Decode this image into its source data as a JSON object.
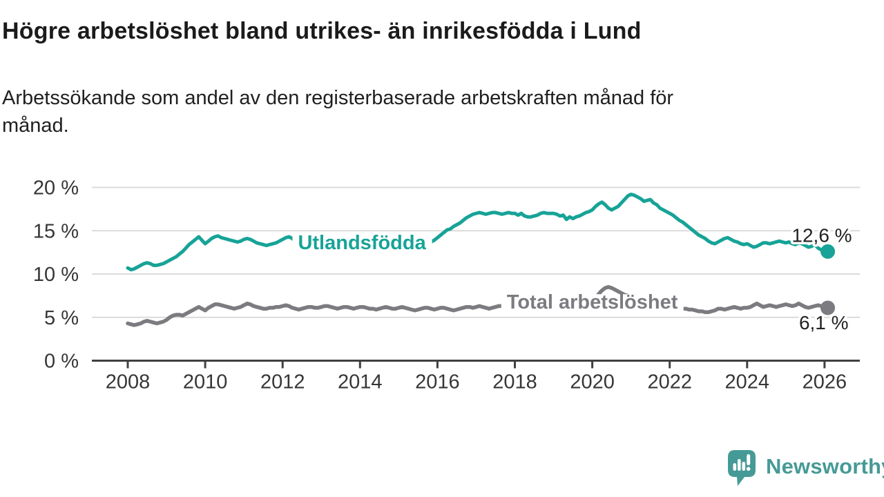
{
  "header": {
    "title": "Högre arbetslöshet bland utrikes- än inrikesfödda i Lund",
    "subtitle_lines": [
      "Arbetssökande som andel av den registerbaserade arbetskraften månad för",
      "månad."
    ]
  },
  "chart_data": {
    "type": "line",
    "title": "Högre arbetslöshet bland utrikes- än inrikesfödda i Lund",
    "subtitle": "Arbetssökande som andel av den registerbaserade arbetskraften månad för månad.",
    "unit": "%",
    "grid": "horizontal",
    "legend_position": "inline-labels",
    "x_axis": {
      "frequency": "monthly",
      "start_year": 2008,
      "start_month": 1,
      "end_year": 2026,
      "end_month": 2,
      "ticks": [
        2008,
        2010,
        2012,
        2014,
        2016,
        2018,
        2020,
        2022,
        2024,
        2026
      ],
      "axis_color": "#404040",
      "tick_label_color": "#363636"
    },
    "y_axis": {
      "min": 0,
      "max": 21,
      "ticks": [
        0,
        5,
        10,
        15,
        20
      ],
      "tick_suffix": " %",
      "gridline_color": "#dbdbdb",
      "tick_label_color": "#363636"
    },
    "end_label_color": "#222222",
    "series": [
      {
        "name": "Utlandsfödda",
        "color": "#17a397",
        "label_anchor": {
          "year": 2014.05,
          "value": 12.85
        },
        "end_point_label": "12,6 %",
        "last_value": 12.6,
        "values": [
          10.7,
          10.5,
          10.6,
          10.8,
          11.0,
          11.2,
          11.3,
          11.2,
          11.0,
          11.0,
          11.1,
          11.2,
          11.4,
          11.6,
          11.8,
          12.0,
          12.3,
          12.6,
          13.0,
          13.4,
          13.7,
          14.0,
          14.3,
          13.9,
          13.5,
          13.8,
          14.1,
          14.3,
          14.4,
          14.2,
          14.1,
          14.0,
          13.9,
          13.8,
          13.7,
          13.8,
          14.0,
          14.1,
          14.0,
          13.8,
          13.6,
          13.5,
          13.4,
          13.3,
          13.4,
          13.5,
          13.6,
          13.8,
          14.0,
          14.2,
          14.3,
          14.1,
          13.8,
          13.5,
          13.3,
          13.4,
          13.5,
          13.6,
          13.6,
          13.5,
          13.6,
          13.7,
          13.8,
          13.7,
          13.6,
          13.5,
          13.4,
          13.5,
          13.6,
          13.6,
          13.5,
          13.4,
          13.5,
          13.6,
          13.6,
          13.5,
          13.4,
          13.3,
          13.2,
          13.3,
          13.4,
          13.5,
          13.4,
          13.3,
          13.4,
          13.5,
          13.5,
          13.4,
          13.3,
          13.2,
          13.3,
          13.4,
          13.5,
          13.6,
          13.7,
          13.9,
          14.2,
          14.5,
          14.8,
          15.1,
          15.2,
          15.5,
          15.7,
          15.9,
          16.2,
          16.5,
          16.7,
          16.9,
          17.0,
          17.1,
          17.0,
          16.9,
          17.0,
          17.1,
          17.1,
          17.0,
          16.9,
          17.0,
          17.1,
          17.0,
          17.0,
          16.8,
          17.0,
          16.7,
          16.6,
          16.6,
          16.7,
          16.8,
          17.0,
          17.1,
          17.0,
          17.0,
          17.0,
          16.9,
          16.7,
          16.8,
          16.3,
          16.6,
          16.4,
          16.6,
          16.7,
          16.9,
          17.1,
          17.2,
          17.4,
          17.8,
          18.1,
          18.3,
          18.0,
          17.6,
          17.4,
          17.6,
          17.8,
          18.2,
          18.6,
          19.0,
          19.2,
          19.1,
          18.9,
          18.7,
          18.4,
          18.5,
          18.6,
          18.2,
          18.0,
          17.6,
          17.4,
          17.2,
          17.0,
          16.8,
          16.5,
          16.2,
          16.0,
          15.7,
          15.4,
          15.1,
          14.8,
          14.5,
          14.3,
          14.1,
          13.8,
          13.6,
          13.5,
          13.7,
          13.9,
          14.1,
          14.2,
          14.0,
          13.8,
          13.7,
          13.5,
          13.4,
          13.5,
          13.3,
          13.1,
          13.2,
          13.4,
          13.6,
          13.6,
          13.5,
          13.6,
          13.7,
          13.8,
          13.7,
          13.6,
          13.7,
          13.5,
          13.4,
          13.6,
          13.5,
          13.3,
          13.1,
          13.2,
          13.4,
          13.0,
          12.8,
          12.7,
          12.6
        ]
      },
      {
        "name": "Total arbetslöshet",
        "color": "#7b7b80",
        "label_anchor": {
          "year": 2020.0,
          "value": 6.0
        },
        "end_point_label": "6,1 %",
        "last_value": 6.1,
        "values": [
          4.3,
          4.2,
          4.1,
          4.2,
          4.3,
          4.5,
          4.6,
          4.5,
          4.4,
          4.3,
          4.4,
          4.5,
          4.7,
          5.0,
          5.2,
          5.3,
          5.3,
          5.2,
          5.4,
          5.6,
          5.8,
          6.0,
          6.2,
          6.0,
          5.8,
          6.1,
          6.3,
          6.5,
          6.5,
          6.4,
          6.3,
          6.2,
          6.1,
          6.0,
          6.1,
          6.2,
          6.4,
          6.6,
          6.5,
          6.3,
          6.2,
          6.1,
          6.0,
          6.0,
          6.1,
          6.1,
          6.2,
          6.2,
          6.3,
          6.4,
          6.3,
          6.1,
          6.0,
          5.9,
          6.0,
          6.1,
          6.2,
          6.2,
          6.1,
          6.1,
          6.2,
          6.3,
          6.3,
          6.2,
          6.1,
          6.0,
          6.1,
          6.2,
          6.2,
          6.1,
          6.0,
          6.1,
          6.2,
          6.2,
          6.1,
          6.0,
          6.0,
          5.9,
          6.0,
          6.1,
          6.2,
          6.1,
          6.0,
          6.0,
          6.1,
          6.2,
          6.1,
          6.0,
          5.9,
          5.8,
          5.9,
          6.0,
          6.1,
          6.1,
          6.0,
          5.9,
          6.0,
          6.1,
          6.1,
          6.0,
          5.9,
          5.8,
          5.9,
          6.0,
          6.1,
          6.2,
          6.2,
          6.1,
          6.2,
          6.3,
          6.2,
          6.1,
          6.0,
          6.1,
          6.2,
          6.3,
          6.3,
          6.4,
          6.4,
          6.3,
          6.3,
          6.4,
          6.3,
          6.2,
          6.1,
          6.0,
          6.1,
          6.2,
          6.2,
          6.3,
          6.3,
          6.2,
          6.2,
          6.3,
          6.2,
          6.1,
          6.1,
          6.0,
          6.1,
          6.2,
          6.3,
          6.4,
          6.5,
          6.6,
          6.8,
          7.2,
          7.7,
          8.1,
          8.4,
          8.5,
          8.4,
          8.2,
          8.0,
          7.8,
          7.6,
          7.5,
          7.4,
          7.3,
          7.2,
          7.0,
          6.9,
          6.8,
          6.7,
          6.6,
          6.5,
          6.4,
          6.3,
          6.2,
          6.2,
          6.1,
          6.1,
          6.0,
          6.0,
          6.0,
          5.9,
          5.9,
          5.8,
          5.7,
          5.7,
          5.6,
          5.6,
          5.7,
          5.8,
          6.0,
          6.0,
          5.9,
          6.0,
          6.1,
          6.2,
          6.1,
          6.0,
          6.1,
          6.1,
          6.2,
          6.4,
          6.6,
          6.4,
          6.2,
          6.3,
          6.4,
          6.3,
          6.2,
          6.3,
          6.4,
          6.5,
          6.4,
          6.3,
          6.4,
          6.6,
          6.4,
          6.2,
          6.1,
          6.2,
          6.3,
          6.4,
          6.3,
          6.2,
          6.1
        ]
      }
    ]
  },
  "logo": {
    "text": "Newsworthy",
    "color": "#469a96"
  }
}
